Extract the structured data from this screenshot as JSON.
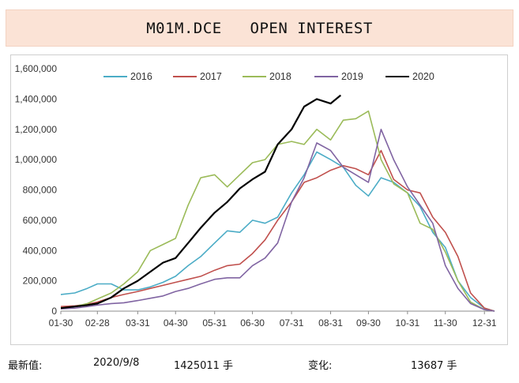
{
  "header": {
    "title": "M01M.DCE   OPEN INTEREST"
  },
  "footer": {
    "latest_label": "最新值:",
    "date": "2020/9/8",
    "value": "1425011 手",
    "change_label": "变化:",
    "change_value": "13687 手"
  },
  "chart_data": {
    "type": "line",
    "title": "",
    "xlabel": "",
    "ylabel": "",
    "x_tick_labels": [
      "01-30",
      "02-28",
      "03-31",
      "04-30",
      "05-31",
      "06-30",
      "07-31",
      "08-31",
      "09-30",
      "10-31",
      "11-30",
      "12-31"
    ],
    "y_tick_labels": [
      "0",
      "200,000",
      "400,000",
      "600,000",
      "800,000",
      "1,000,000",
      "1,200,000",
      "1,400,000",
      "1,600,000"
    ],
    "ylim": [
      0,
      1600000
    ],
    "xlim": [
      "01-30",
      "01-08"
    ],
    "grid": false,
    "legend": "top",
    "x_unit": "month-day",
    "series": [
      {
        "name": "2016",
        "color": "#4bacc6",
        "x": [
          "01-30",
          "02-10",
          "02-20",
          "02-28",
          "03-10",
          "03-20",
          "03-31",
          "04-10",
          "04-20",
          "04-30",
          "05-10",
          "05-20",
          "05-31",
          "06-10",
          "06-20",
          "06-30",
          "07-10",
          "07-20",
          "07-31",
          "08-10",
          "08-20",
          "08-31",
          "09-10",
          "09-20",
          "09-30",
          "10-10",
          "10-20",
          "10-31",
          "11-10",
          "11-20",
          "11-30",
          "12-10",
          "12-20",
          "12-31",
          "01-08"
        ],
        "values": [
          110000,
          120000,
          150000,
          180000,
          180000,
          140000,
          140000,
          160000,
          190000,
          230000,
          300000,
          360000,
          450000,
          530000,
          520000,
          600000,
          580000,
          620000,
          780000,
          900000,
          1050000,
          1000000,
          950000,
          830000,
          760000,
          880000,
          850000,
          780000,
          690000,
          520000,
          420000,
          200000,
          90000,
          20000,
          0
        ]
      },
      {
        "name": "2017",
        "color": "#c0504d",
        "x": [
          "01-30",
          "02-10",
          "02-20",
          "02-28",
          "03-10",
          "03-20",
          "03-31",
          "04-10",
          "04-20",
          "04-30",
          "05-10",
          "05-20",
          "05-31",
          "06-10",
          "06-20",
          "06-30",
          "07-10",
          "07-20",
          "07-31",
          "08-10",
          "08-20",
          "08-31",
          "09-10",
          "09-20",
          "09-30",
          "10-10",
          "10-20",
          "10-31",
          "11-10",
          "11-20",
          "11-30",
          "12-10",
          "12-20",
          "12-31",
          "01-08"
        ],
        "values": [
          30000,
          35000,
          45000,
          60000,
          90000,
          110000,
          130000,
          150000,
          170000,
          190000,
          210000,
          230000,
          270000,
          300000,
          310000,
          380000,
          470000,
          600000,
          720000,
          850000,
          880000,
          930000,
          960000,
          940000,
          900000,
          1060000,
          870000,
          800000,
          780000,
          620000,
          520000,
          360000,
          120000,
          20000,
          0
        ]
      },
      {
        "name": "2018",
        "color": "#9bbb59",
        "x": [
          "01-30",
          "02-10",
          "02-20",
          "02-28",
          "03-10",
          "03-20",
          "03-31",
          "04-10",
          "04-20",
          "04-30",
          "05-10",
          "05-20",
          "05-31",
          "06-10",
          "06-20",
          "06-30",
          "07-10",
          "07-20",
          "07-31",
          "08-10",
          "08-20",
          "08-31",
          "09-10",
          "09-20",
          "09-30",
          "10-10",
          "10-20",
          "10-31",
          "11-10",
          "11-20",
          "11-30",
          "12-10",
          "12-20",
          "12-31",
          "01-08"
        ],
        "values": [
          20000,
          30000,
          50000,
          80000,
          120000,
          180000,
          260000,
          400000,
          440000,
          480000,
          700000,
          880000,
          900000,
          820000,
          900000,
          980000,
          1000000,
          1100000,
          1120000,
          1100000,
          1200000,
          1130000,
          1260000,
          1270000,
          1320000,
          1000000,
          840000,
          780000,
          580000,
          540000,
          390000,
          200000,
          60000,
          10000,
          0
        ]
      },
      {
        "name": "2019",
        "color": "#8064a2",
        "x": [
          "01-30",
          "02-10",
          "02-20",
          "02-28",
          "03-10",
          "03-20",
          "03-31",
          "04-10",
          "04-20",
          "04-30",
          "05-10",
          "05-20",
          "05-31",
          "06-10",
          "06-20",
          "06-30",
          "07-10",
          "07-20",
          "07-31",
          "08-10",
          "08-20",
          "08-31",
          "09-10",
          "09-20",
          "09-30",
          "10-10",
          "10-20",
          "10-31",
          "11-10",
          "11-20",
          "11-30",
          "12-10",
          "12-20",
          "12-31",
          "01-08"
        ],
        "values": [
          15000,
          20000,
          30000,
          40000,
          50000,
          55000,
          70000,
          85000,
          100000,
          130000,
          150000,
          180000,
          210000,
          220000,
          220000,
          300000,
          350000,
          450000,
          720000,
          880000,
          1110000,
          1060000,
          950000,
          900000,
          850000,
          1200000,
          1000000,
          820000,
          700000,
          580000,
          300000,
          150000,
          50000,
          10000,
          0
        ]
      },
      {
        "name": "2020",
        "color": "#000000",
        "x": [
          "01-30",
          "02-10",
          "02-20",
          "02-28",
          "03-10",
          "03-20",
          "03-31",
          "04-10",
          "04-20",
          "04-30",
          "05-10",
          "05-20",
          "05-31",
          "06-10",
          "06-20",
          "06-30",
          "07-10",
          "07-20",
          "07-31",
          "08-10",
          "08-20",
          "08-31",
          "09-08"
        ],
        "values": [
          20000,
          30000,
          40000,
          50000,
          90000,
          150000,
          200000,
          260000,
          320000,
          350000,
          450000,
          550000,
          650000,
          720000,
          810000,
          870000,
          920000,
          1100000,
          1200000,
          1350000,
          1400000,
          1370000,
          1425011
        ]
      }
    ]
  }
}
